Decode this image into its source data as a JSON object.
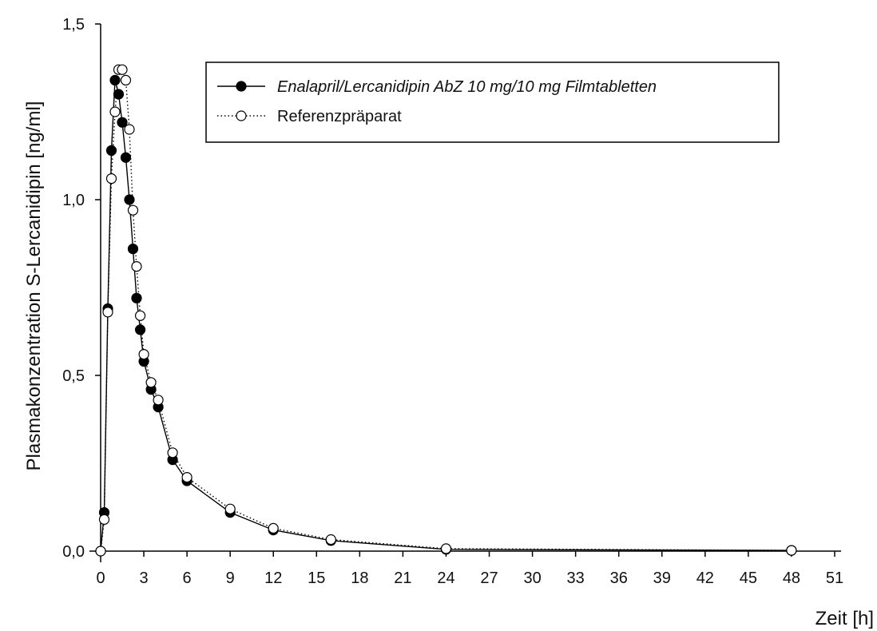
{
  "chart_data": {
    "type": "line",
    "title": "",
    "xlabel": "Zeit [h]",
    "ylabel": "Plasmakonzentration S-Lercanidipin [ng/ml]",
    "xlim": [
      0,
      51
    ],
    "ylim": [
      0,
      1.5
    ],
    "x_ticks": [
      0,
      3,
      6,
      9,
      12,
      15,
      18,
      21,
      24,
      27,
      30,
      33,
      36,
      39,
      42,
      45,
      48,
      51
    ],
    "x_tick_labels": [
      "0",
      "3",
      "6",
      "9",
      "12",
      "15",
      "18",
      "21",
      "24",
      "27",
      "30",
      "33",
      "36",
      "39",
      "42",
      "45",
      "48",
      "51"
    ],
    "y_ticks": [
      0,
      0.5,
      1.0,
      1.5
    ],
    "y_tick_labels": [
      "0,0",
      "0,5",
      "1,0",
      "1,5"
    ],
    "grid": false,
    "legend_position": "top-right",
    "series": [
      {
        "name": "Enalapril/Lercanidipin AbZ 10 mg/10 mg Filmtabletten",
        "marker": "filled-circle",
        "line": "solid",
        "color": "#000000",
        "x": [
          0,
          0.25,
          0.5,
          0.75,
          1.0,
          1.25,
          1.5,
          1.75,
          2.0,
          2.25,
          2.5,
          2.75,
          3.0,
          3.5,
          4.0,
          5.0,
          6.0,
          9.0,
          12.0,
          16.0,
          24.0,
          48.0
        ],
        "y": [
          0.0,
          0.11,
          0.69,
          1.14,
          1.34,
          1.3,
          1.22,
          1.12,
          1.0,
          0.86,
          0.72,
          0.63,
          0.54,
          0.46,
          0.41,
          0.26,
          0.2,
          0.11,
          0.06,
          0.03,
          0.005,
          0.002
        ]
      },
      {
        "name": "Referenzpräparat",
        "marker": "open-circle",
        "line": "dotted",
        "color": "#000000",
        "x": [
          0,
          0.25,
          0.5,
          0.75,
          1.0,
          1.25,
          1.5,
          1.75,
          2.0,
          2.25,
          2.5,
          2.75,
          3.0,
          3.5,
          4.0,
          5.0,
          6.0,
          9.0,
          12.0,
          16.0,
          24.0,
          48.0
        ],
        "y": [
          0.0,
          0.09,
          0.68,
          1.06,
          1.25,
          1.37,
          1.37,
          1.34,
          1.2,
          0.97,
          0.81,
          0.67,
          0.56,
          0.48,
          0.43,
          0.28,
          0.21,
          0.12,
          0.065,
          0.033,
          0.007,
          0.002
        ]
      }
    ]
  }
}
